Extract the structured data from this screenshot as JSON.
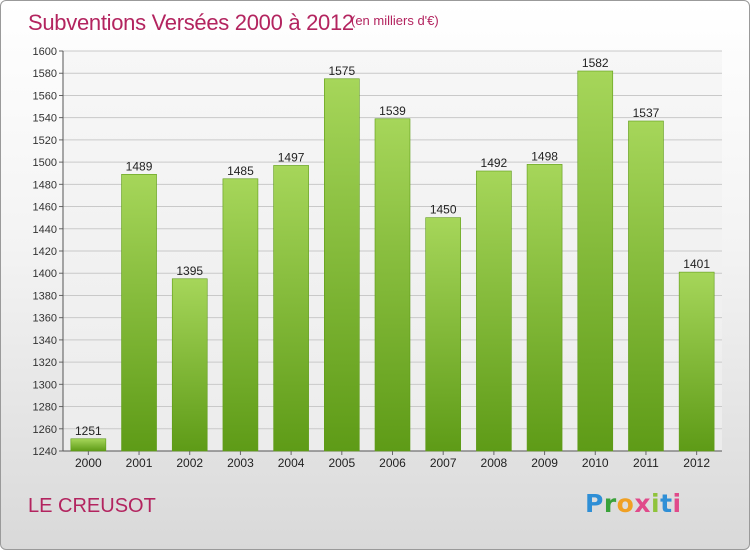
{
  "header": {
    "title": "Subventions Versées 2000 à 2012",
    "subtitle": "(en milliers d'€)"
  },
  "footer": {
    "place": "LE CREUSOT",
    "logo": "Proxiti"
  },
  "colors": {
    "title": "#b3245f",
    "bar_light": "#a6d65a",
    "bar_dark": "#5e9b17",
    "grid": "#c9c9c9",
    "plot_bg": "#f2f2f2"
  },
  "chart_data": {
    "type": "bar",
    "title": "Subventions Versées 2000 à 2012",
    "subtitle": "(en milliers d'€)",
    "xlabel": "",
    "ylabel": "",
    "categories": [
      "2000",
      "2001",
      "2002",
      "2003",
      "2004",
      "2005",
      "2006",
      "2007",
      "2008",
      "2009",
      "2010",
      "2011",
      "2012"
    ],
    "values": [
      1251,
      1489,
      1395,
      1485,
      1497,
      1575,
      1539,
      1450,
      1492,
      1498,
      1582,
      1537,
      1401
    ],
    "ylim": [
      1240,
      1600
    ],
    "yticks": [
      1240,
      1260,
      1280,
      1300,
      1320,
      1340,
      1360,
      1380,
      1400,
      1420,
      1440,
      1460,
      1480,
      1500,
      1520,
      1540,
      1560,
      1580,
      1600
    ],
    "grid": true,
    "legend": "none"
  }
}
